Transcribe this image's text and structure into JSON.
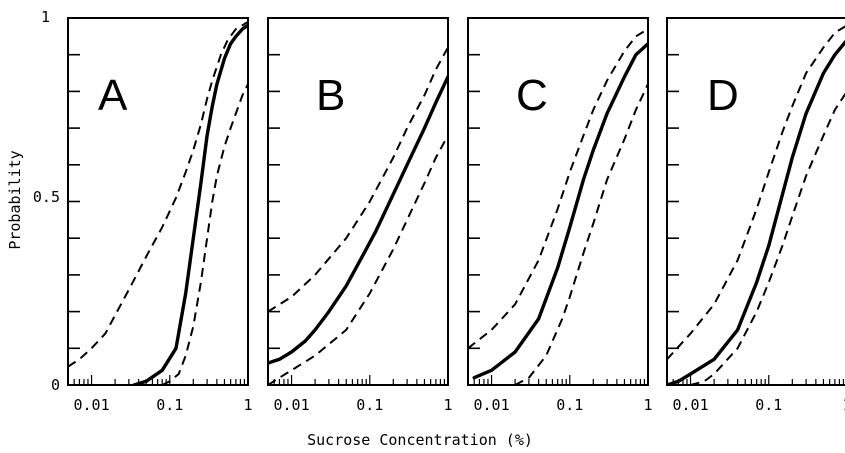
{
  "chart_data": {
    "type": "line",
    "xlabel": "Sucrose Concentration (%)",
    "ylabel": "Probability",
    "x_scale": "log",
    "xlim": [
      0.005,
      1
    ],
    "ylim": [
      0,
      1
    ],
    "y_ticks": [
      0,
      0.5,
      1
    ],
    "y_tick_labels": [
      "0",
      "0.5",
      "1"
    ],
    "x_ticks": [
      0.01,
      0.1,
      1
    ],
    "x_tick_labels": [
      "0.01",
      "0.1",
      "1"
    ],
    "line_color": "#000000",
    "panels": [
      {
        "label": "A",
        "series": [
          {
            "style": "solid",
            "x": [
              0.035,
              0.05,
              0.08,
              0.12,
              0.16,
              0.2,
              0.25,
              0.3,
              0.35,
              0.4,
              0.5,
              0.6,
              0.7,
              0.85,
              1.0
            ],
            "y": [
              0,
              0.01,
              0.04,
              0.1,
              0.25,
              0.4,
              0.55,
              0.68,
              0.76,
              0.82,
              0.89,
              0.93,
              0.95,
              0.97,
              0.98
            ]
          },
          {
            "style": "dashed",
            "x": [
              0.005,
              0.007,
              0.01,
              0.015,
              0.02,
              0.03,
              0.05,
              0.08,
              0.12,
              0.16,
              0.2,
              0.25,
              0.3,
              0.35,
              0.45,
              0.55,
              0.7,
              0.85,
              1.0
            ],
            "y": [
              0.05,
              0.07,
              0.1,
              0.14,
              0.19,
              0.26,
              0.35,
              0.43,
              0.51,
              0.58,
              0.64,
              0.71,
              0.78,
              0.83,
              0.9,
              0.94,
              0.97,
              0.98,
              0.99
            ]
          },
          {
            "style": "dashed",
            "x": [
              0.08,
              0.1,
              0.13,
              0.16,
              0.2,
              0.25,
              0.3,
              0.35,
              0.4,
              0.5,
              0.6,
              0.7,
              0.85,
              1.0
            ],
            "y": [
              0,
              0.01,
              0.03,
              0.08,
              0.16,
              0.28,
              0.4,
              0.5,
              0.57,
              0.65,
              0.7,
              0.74,
              0.79,
              0.82
            ]
          }
        ]
      },
      {
        "label": "B",
        "series": [
          {
            "style": "solid",
            "x": [
              0.005,
              0.007,
              0.01,
              0.015,
              0.02,
              0.03,
              0.05,
              0.08,
              0.12,
              0.2,
              0.3,
              0.5,
              0.7,
              1.0
            ],
            "y": [
              0.06,
              0.07,
              0.09,
              0.12,
              0.15,
              0.2,
              0.27,
              0.35,
              0.42,
              0.52,
              0.6,
              0.7,
              0.77,
              0.84
            ]
          },
          {
            "style": "dashed",
            "x": [
              0.005,
              0.01,
              0.02,
              0.05,
              0.1,
              0.2,
              0.3,
              0.5,
              0.7,
              1.0
            ],
            "y": [
              0.2,
              0.24,
              0.3,
              0.4,
              0.5,
              0.62,
              0.7,
              0.79,
              0.86,
              0.92
            ]
          },
          {
            "style": "dashed",
            "x": [
              0.005,
              0.007,
              0.01,
              0.02,
              0.05,
              0.1,
              0.2,
              0.3,
              0.5,
              0.7,
              1.0
            ],
            "y": [
              0,
              0.02,
              0.04,
              0.08,
              0.15,
              0.25,
              0.37,
              0.45,
              0.55,
              0.62,
              0.68
            ]
          }
        ]
      },
      {
        "label": "C",
        "series": [
          {
            "style": "solid",
            "x": [
              0.006,
              0.01,
              0.02,
              0.04,
              0.07,
              0.1,
              0.15,
              0.2,
              0.3,
              0.5,
              0.7,
              1.0
            ],
            "y": [
              0.02,
              0.04,
              0.09,
              0.18,
              0.32,
              0.43,
              0.56,
              0.64,
              0.74,
              0.84,
              0.9,
              0.93
            ]
          },
          {
            "style": "dashed",
            "x": [
              0.005,
              0.01,
              0.02,
              0.04,
              0.07,
              0.1,
              0.15,
              0.2,
              0.3,
              0.5,
              0.7,
              1.0
            ],
            "y": [
              0.1,
              0.15,
              0.22,
              0.34,
              0.48,
              0.58,
              0.68,
              0.75,
              0.83,
              0.91,
              0.95,
              0.97
            ]
          },
          {
            "style": "dashed",
            "x": [
              0.02,
              0.03,
              0.05,
              0.08,
              0.1,
              0.15,
              0.2,
              0.3,
              0.5,
              0.7,
              1.0
            ],
            "y": [
              0,
              0.02,
              0.08,
              0.18,
              0.24,
              0.36,
              0.44,
              0.56,
              0.67,
              0.75,
              0.82
            ]
          }
        ]
      },
      {
        "label": "D",
        "series": [
          {
            "style": "solid",
            "x": [
              0.005,
              0.007,
              0.01,
              0.02,
              0.04,
              0.07,
              0.1,
              0.15,
              0.2,
              0.3,
              0.5,
              0.7,
              1.0
            ],
            "y": [
              0,
              0.01,
              0.03,
              0.07,
              0.15,
              0.28,
              0.38,
              0.52,
              0.62,
              0.74,
              0.85,
              0.9,
              0.94
            ]
          },
          {
            "style": "dashed",
            "x": [
              0.005,
              0.01,
              0.02,
              0.04,
              0.07,
              0.1,
              0.15,
              0.2,
              0.3,
              0.5,
              0.7,
              1.0
            ],
            "y": [
              0.07,
              0.14,
              0.22,
              0.34,
              0.48,
              0.58,
              0.69,
              0.76,
              0.85,
              0.92,
              0.96,
              0.98
            ]
          },
          {
            "style": "dashed",
            "x": [
              0.01,
              0.015,
              0.02,
              0.04,
              0.07,
              0.1,
              0.15,
              0.2,
              0.3,
              0.5,
              0.7,
              1.0
            ],
            "y": [
              0,
              0.01,
              0.03,
              0.1,
              0.2,
              0.28,
              0.38,
              0.46,
              0.57,
              0.68,
              0.75,
              0.8
            ]
          }
        ]
      }
    ]
  }
}
